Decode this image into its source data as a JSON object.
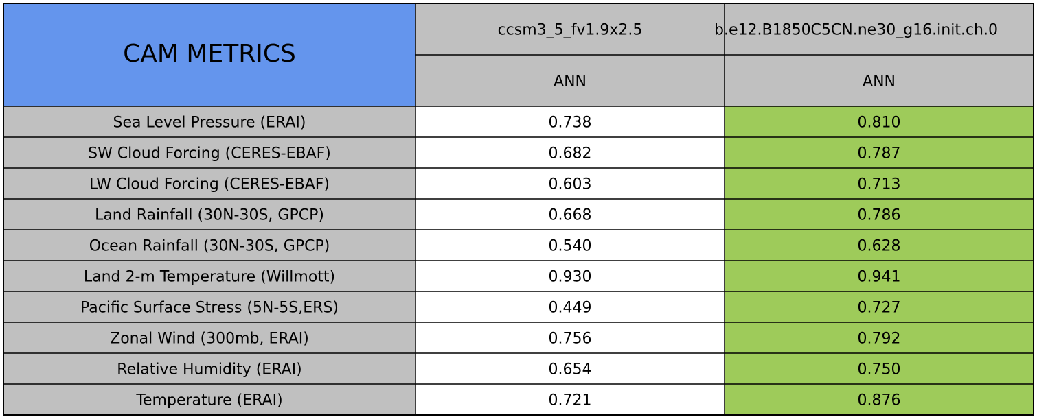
{
  "table": {
    "title": "CAM METRICS",
    "columns": [
      {
        "name": "ccsm3_5_fv1.9x2.5",
        "period": "ANN"
      },
      {
        "name": "b.e12.B1850C5CN.ne30_g16.init.ch.0",
        "period": "ANN"
      }
    ],
    "rows": [
      [
        "Sea Level Pressure (ERAI)",
        "0.738",
        "0.810"
      ],
      [
        "SW Cloud Forcing (CERES-EBAF)",
        "0.682",
        "0.787"
      ],
      [
        "LW Cloud Forcing (CERES-EBAF)",
        "0.603",
        "0.713"
      ],
      [
        "Land Rainfall (30N-30S, GPCP)",
        "0.668",
        "0.786"
      ],
      [
        "Ocean Rainfall (30N-30S, GPCP)",
        "0.540",
        "0.628"
      ],
      [
        "Land 2-m Temperature (Willmott)",
        "0.930",
        "0.941"
      ],
      [
        "Pacific Surface Stress (5N-5S,ERS)",
        "0.449",
        "0.727"
      ],
      [
        "Zonal Wind (300mb, ERAI)",
        "0.756",
        "0.792"
      ],
      [
        "Relative Humidity (ERAI)",
        "0.654",
        "0.750"
      ],
      [
        "Temperature (ERAI)",
        "0.721",
        "0.876"
      ]
    ]
  }
}
